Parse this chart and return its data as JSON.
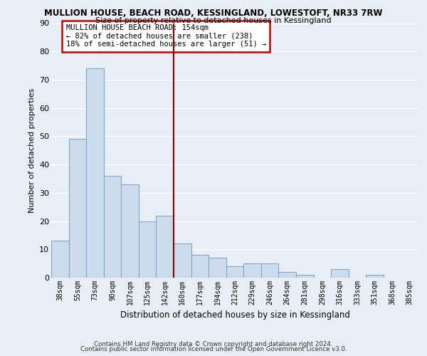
{
  "title": "MULLION HOUSE, BEACH ROAD, KESSINGLAND, LOWESTOFT, NR33 7RW",
  "subtitle": "Size of property relative to detached houses in Kessingland",
  "xlabel": "Distribution of detached houses by size in Kessingland",
  "ylabel": "Number of detached properties",
  "categories": [
    "38sqm",
    "55sqm",
    "73sqm",
    "90sqm",
    "107sqm",
    "125sqm",
    "142sqm",
    "160sqm",
    "177sqm",
    "194sqm",
    "212sqm",
    "229sqm",
    "246sqm",
    "264sqm",
    "281sqm",
    "298sqm",
    "316sqm",
    "333sqm",
    "351sqm",
    "368sqm",
    "385sqm"
  ],
  "values": [
    13,
    49,
    74,
    36,
    33,
    20,
    22,
    12,
    8,
    7,
    4,
    5,
    5,
    2,
    1,
    0,
    3,
    0,
    1,
    0,
    0
  ],
  "bar_color": "#ccdcec",
  "bar_edge_color": "#7aaac8",
  "annotation_title": "MULLION HOUSE BEACH ROAD: 154sqm",
  "annotation_line1": "← 82% of detached houses are smaller (238)",
  "annotation_line2": "18% of semi-detached houses are larger (51) →",
  "vline_color": "#8b0000",
  "ylim": [
    0,
    90
  ],
  "yticks": [
    0,
    10,
    20,
    30,
    40,
    50,
    60,
    70,
    80,
    90
  ],
  "footer1": "Contains HM Land Registry data © Crown copyright and database right 2024.",
  "footer2": "Contains public sector information licensed under the Open Government Licence v3.0.",
  "bg_color": "#e8eef5",
  "grid_color": "#ffffff",
  "title_fontsize": 8.5,
  "subtitle_fontsize": 8.0
}
